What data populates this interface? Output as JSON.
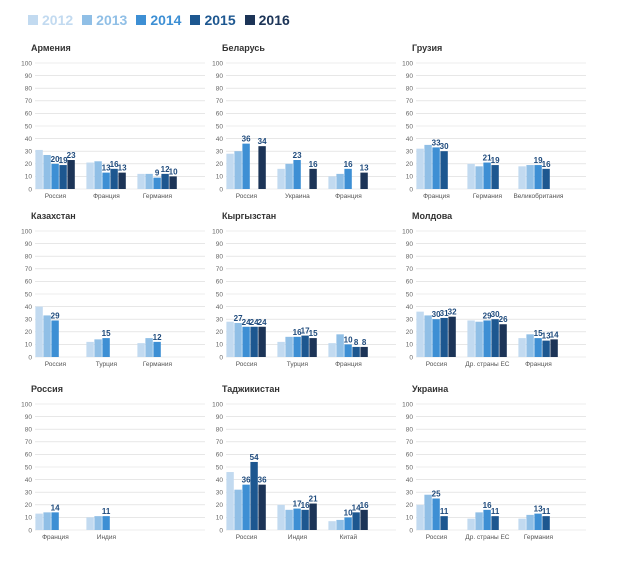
{
  "legend": {
    "items": [
      {
        "label": "2012",
        "color": "#c2daf0"
      },
      {
        "label": "2013",
        "color": "#90bfe6"
      },
      {
        "label": "2014",
        "color": "#3d8fd4"
      },
      {
        "label": "2015",
        "color": "#1d5790"
      },
      {
        "label": "2016",
        "color": "#1c3457"
      }
    ]
  },
  "chart_data": [
    {
      "type": "bar",
      "title": "Армения",
      "ylim": [
        0,
        100
      ],
      "yticks": [
        0,
        10,
        20,
        30,
        40,
        50,
        60,
        70,
        80,
        90,
        100
      ],
      "categories": [
        "Россия",
        "Франция",
        "Германия"
      ],
      "series": [
        {
          "name": "2012",
          "values": [
            31,
            21,
            12
          ]
        },
        {
          "name": "2013",
          "values": [
            27,
            22,
            12
          ]
        },
        {
          "name": "2014",
          "values": [
            20,
            13,
            9
          ]
        },
        {
          "name": "2015",
          "values": [
            19,
            16,
            12
          ]
        },
        {
          "name": "2016",
          "values": [
            23,
            13,
            10
          ]
        }
      ],
      "labels": [
        {
          "series": 2,
          "cat": 0,
          "text": "20"
        },
        {
          "series": 3,
          "cat": 0,
          "text": "19"
        },
        {
          "series": 4,
          "cat": 0,
          "text": "23"
        },
        {
          "series": 2,
          "cat": 1,
          "text": "13"
        },
        {
          "series": 3,
          "cat": 1,
          "text": "16"
        },
        {
          "series": 4,
          "cat": 1,
          "text": "13"
        },
        {
          "series": 2,
          "cat": 2,
          "text": "9"
        },
        {
          "series": 3,
          "cat": 2,
          "text": "12"
        },
        {
          "series": 4,
          "cat": 2,
          "text": "10"
        }
      ]
    },
    {
      "type": "bar",
      "title": "Беларусь",
      "ylim": [
        0,
        100
      ],
      "yticks": [
        0,
        10,
        20,
        30,
        40,
        50,
        60,
        70,
        80,
        90,
        100
      ],
      "categories": [
        "Россия",
        "Украина",
        "Франция"
      ],
      "series": [
        {
          "name": "2012",
          "values": [
            28,
            16,
            10
          ]
        },
        {
          "name": "2013",
          "values": [
            30,
            20,
            12
          ]
        },
        {
          "name": "2014",
          "values": [
            36,
            23,
            16
          ]
        },
        {
          "name": "2015",
          "values": [
            0,
            0,
            0
          ]
        },
        {
          "name": "2016",
          "values": [
            34,
            16,
            13
          ]
        }
      ],
      "labels": [
        {
          "series": 2,
          "cat": 0,
          "text": "36"
        },
        {
          "series": 4,
          "cat": 0,
          "text": "34"
        },
        {
          "series": 2,
          "cat": 1,
          "text": "23"
        },
        {
          "series": 4,
          "cat": 1,
          "text": "16"
        },
        {
          "series": 2,
          "cat": 2,
          "text": "16"
        },
        {
          "series": 4,
          "cat": 2,
          "text": "13"
        }
      ]
    },
    {
      "type": "bar",
      "title": "Грузия",
      "ylim": [
        0,
        100
      ],
      "yticks": [
        0,
        10,
        20,
        30,
        40,
        50,
        60,
        70,
        80,
        90,
        100
      ],
      "categories": [
        "Франция",
        "Германия",
        "Великобритания"
      ],
      "series": [
        {
          "name": "2012",
          "values": [
            32,
            20,
            18
          ]
        },
        {
          "name": "2013",
          "values": [
            35,
            18,
            19
          ]
        },
        {
          "name": "2014",
          "values": [
            33,
            21,
            19
          ]
        },
        {
          "name": "2015",
          "values": [
            30,
            19,
            16
          ]
        },
        {
          "name": "2016",
          "values": [
            0,
            0,
            0
          ]
        }
      ],
      "labels": [
        {
          "series": 2,
          "cat": 0,
          "text": "33"
        },
        {
          "series": 3,
          "cat": 0,
          "text": "30"
        },
        {
          "series": 2,
          "cat": 1,
          "text": "21"
        },
        {
          "series": 3,
          "cat": 1,
          "text": "19"
        },
        {
          "series": 2,
          "cat": 2,
          "text": "19"
        },
        {
          "series": 3,
          "cat": 2,
          "text": "16"
        }
      ]
    },
    {
      "type": "bar",
      "title": "Казахстан",
      "ylim": [
        0,
        100
      ],
      "yticks": [
        0,
        10,
        20,
        30,
        40,
        50,
        60,
        70,
        80,
        90,
        100
      ],
      "categories": [
        "Россия",
        "Турция",
        "Германия"
      ],
      "series": [
        {
          "name": "2012",
          "values": [
            40,
            12,
            11
          ]
        },
        {
          "name": "2013",
          "values": [
            33,
            14,
            15
          ]
        },
        {
          "name": "2014",
          "values": [
            29,
            15,
            12
          ]
        },
        {
          "name": "2015",
          "values": [
            0,
            0,
            0
          ]
        },
        {
          "name": "2016",
          "values": [
            0,
            0,
            0
          ]
        }
      ],
      "labels": [
        {
          "series": 2,
          "cat": 0,
          "text": "29"
        },
        {
          "series": 2,
          "cat": 1,
          "text": "15"
        },
        {
          "series": 2,
          "cat": 2,
          "text": "12"
        }
      ]
    },
    {
      "type": "bar",
      "title": "Кыргызстан",
      "ylim": [
        0,
        100
      ],
      "yticks": [
        0,
        10,
        20,
        30,
        40,
        50,
        60,
        70,
        80,
        90,
        100
      ],
      "categories": [
        "Россия",
        "Турция",
        "Франция"
      ],
      "series": [
        {
          "name": "2012",
          "values": [
            28,
            12,
            11
          ]
        },
        {
          "name": "2013",
          "values": [
            27,
            16,
            18
          ]
        },
        {
          "name": "2014",
          "values": [
            24,
            16,
            10
          ]
        },
        {
          "name": "2015",
          "values": [
            24,
            17,
            8
          ]
        },
        {
          "name": "2016",
          "values": [
            24,
            15,
            8
          ]
        }
      ],
      "labels": [
        {
          "series": 1,
          "cat": 0,
          "text": "27"
        },
        {
          "series": 2,
          "cat": 0,
          "text": "24"
        },
        {
          "series": 3,
          "cat": 0,
          "text": "24"
        },
        {
          "series": 4,
          "cat": 0,
          "text": "24"
        },
        {
          "series": 2,
          "cat": 1,
          "text": "16"
        },
        {
          "series": 3,
          "cat": 1,
          "text": "17"
        },
        {
          "series": 4,
          "cat": 1,
          "text": "15"
        },
        {
          "series": 2,
          "cat": 2,
          "text": "10"
        },
        {
          "series": 3,
          "cat": 2,
          "text": "8"
        },
        {
          "series": 4,
          "cat": 2,
          "text": "8"
        }
      ]
    },
    {
      "type": "bar",
      "title": "Молдова",
      "ylim": [
        0,
        100
      ],
      "yticks": [
        0,
        10,
        20,
        30,
        40,
        50,
        60,
        70,
        80,
        90,
        100
      ],
      "categories": [
        "Россия",
        "Др. страны ЕС",
        "Франция"
      ],
      "series": [
        {
          "name": "2012",
          "values": [
            36,
            29,
            15
          ]
        },
        {
          "name": "2013",
          "values": [
            33,
            28,
            18
          ]
        },
        {
          "name": "2014",
          "values": [
            30,
            29,
            15
          ]
        },
        {
          "name": "2015",
          "values": [
            31,
            30,
            13
          ]
        },
        {
          "name": "2016",
          "values": [
            32,
            26,
            14
          ]
        }
      ],
      "labels": [
        {
          "series": 2,
          "cat": 0,
          "text": "30"
        },
        {
          "series": 3,
          "cat": 0,
          "text": "31"
        },
        {
          "series": 4,
          "cat": 0,
          "text": "32"
        },
        {
          "series": 2,
          "cat": 1,
          "text": "29"
        },
        {
          "series": 3,
          "cat": 1,
          "text": "30"
        },
        {
          "series": 4,
          "cat": 1,
          "text": "26"
        },
        {
          "series": 2,
          "cat": 2,
          "text": "15"
        },
        {
          "series": 3,
          "cat": 2,
          "text": "13"
        },
        {
          "series": 4,
          "cat": 2,
          "text": "14"
        }
      ]
    },
    {
      "type": "bar",
      "title": "Россия",
      "ylim": [
        0,
        100
      ],
      "yticks": [
        0,
        10,
        20,
        30,
        40,
        50,
        60,
        70,
        80,
        90,
        100
      ],
      "categories": [
        "Франция",
        "Индия",
        ""
      ],
      "series": [
        {
          "name": "2012",
          "values": [
            13,
            10,
            0
          ]
        },
        {
          "name": "2013",
          "values": [
            14,
            11,
            0
          ]
        },
        {
          "name": "2014",
          "values": [
            14,
            11,
            0
          ]
        },
        {
          "name": "2015",
          "values": [
            0,
            0,
            0
          ]
        },
        {
          "name": "2016",
          "values": [
            0,
            0,
            0
          ]
        }
      ],
      "labels": [
        {
          "series": 2,
          "cat": 0,
          "text": "14"
        },
        {
          "series": 2,
          "cat": 1,
          "text": "11"
        }
      ]
    },
    {
      "type": "bar",
      "title": "Таджикистан",
      "ylim": [
        0,
        100
      ],
      "yticks": [
        0,
        10,
        20,
        30,
        40,
        50,
        60,
        70,
        80,
        90,
        100
      ],
      "categories": [
        "Россия",
        "Индия",
        "Китай"
      ],
      "series": [
        {
          "name": "2012",
          "values": [
            46,
            20,
            7
          ]
        },
        {
          "name": "2013",
          "values": [
            32,
            16,
            8
          ]
        },
        {
          "name": "2014",
          "values": [
            36,
            17,
            10
          ]
        },
        {
          "name": "2015",
          "values": [
            54,
            16,
            14
          ]
        },
        {
          "name": "2016",
          "values": [
            36,
            21,
            16
          ]
        }
      ],
      "labels": [
        {
          "series": 2,
          "cat": 0,
          "text": "36"
        },
        {
          "series": 3,
          "cat": 0,
          "text": "54"
        },
        {
          "series": 4,
          "cat": 0,
          "text": "36"
        },
        {
          "series": 2,
          "cat": 1,
          "text": "17"
        },
        {
          "series": 3,
          "cat": 1,
          "text": "16"
        },
        {
          "series": 4,
          "cat": 1,
          "text": "21"
        },
        {
          "series": 2,
          "cat": 2,
          "text": "10"
        },
        {
          "series": 3,
          "cat": 2,
          "text": "14"
        },
        {
          "series": 4,
          "cat": 2,
          "text": "16"
        }
      ]
    },
    {
      "type": "bar",
      "title": "Украина",
      "ylim": [
        0,
        100
      ],
      "yticks": [
        0,
        10,
        20,
        30,
        40,
        50,
        60,
        70,
        80,
        90,
        100
      ],
      "categories": [
        "Россия",
        "Др. страны ЕС",
        "Германия"
      ],
      "series": [
        {
          "name": "2012",
          "values": [
            20,
            9,
            9
          ]
        },
        {
          "name": "2013",
          "values": [
            28,
            14,
            12
          ]
        },
        {
          "name": "2014",
          "values": [
            25,
            16,
            13
          ]
        },
        {
          "name": "2015",
          "values": [
            11,
            11,
            11
          ]
        },
        {
          "name": "2016",
          "values": [
            0,
            0,
            0
          ]
        }
      ],
      "labels": [
        {
          "series": 2,
          "cat": 0,
          "text": "25"
        },
        {
          "series": 3,
          "cat": 0,
          "text": "11"
        },
        {
          "series": 2,
          "cat": 1,
          "text": "16"
        },
        {
          "series": 3,
          "cat": 1,
          "text": "11"
        },
        {
          "series": 2,
          "cat": 2,
          "text": "13"
        },
        {
          "series": 3,
          "cat": 2,
          "text": "11"
        }
      ]
    }
  ]
}
